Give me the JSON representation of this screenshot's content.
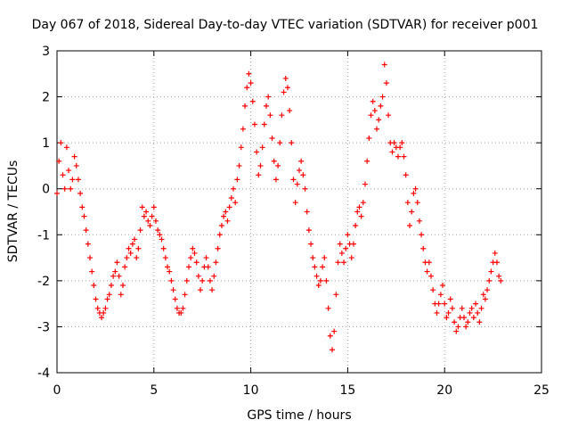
{
  "chart_data": {
    "type": "scatter",
    "title": "Day 067 of 2018, Sidereal Day-to-day VTEC variation (SDTVAR) for receiver p001",
    "xlabel": "GPS time / hours",
    "ylabel": "SDTVAR / TECUs",
    "xlim": [
      0,
      25
    ],
    "ylim": [
      -4,
      3
    ],
    "xticks": [
      0,
      5,
      10,
      15,
      20,
      25
    ],
    "yticks": [
      -4,
      -3,
      -2,
      -1,
      0,
      1,
      2,
      3
    ],
    "grid": true,
    "marker": "+",
    "series": [
      {
        "name": "SDTVAR",
        "color": "#ff0000",
        "points": [
          [
            0.0,
            -0.1
          ],
          [
            0.1,
            0.6
          ],
          [
            0.2,
            1.0
          ],
          [
            0.3,
            0.3
          ],
          [
            0.4,
            0.0
          ],
          [
            0.5,
            0.9
          ],
          [
            0.6,
            0.4
          ],
          [
            0.7,
            0.0
          ],
          [
            0.8,
            0.2
          ],
          [
            0.9,
            0.7
          ],
          [
            1.0,
            0.5
          ],
          [
            1.1,
            0.2
          ],
          [
            1.2,
            -0.1
          ],
          [
            1.3,
            -0.4
          ],
          [
            1.4,
            -0.6
          ],
          [
            1.5,
            -0.9
          ],
          [
            1.6,
            -1.2
          ],
          [
            1.7,
            -1.5
          ],
          [
            1.8,
            -1.8
          ],
          [
            1.9,
            -2.1
          ],
          [
            2.0,
            -2.4
          ],
          [
            2.1,
            -2.6
          ],
          [
            2.2,
            -2.7
          ],
          [
            2.3,
            -2.8
          ],
          [
            2.4,
            -2.7
          ],
          [
            2.5,
            -2.6
          ],
          [
            2.6,
            -2.4
          ],
          [
            2.7,
            -2.3
          ],
          [
            2.8,
            -2.1
          ],
          [
            2.9,
            -1.9
          ],
          [
            3.0,
            -1.8
          ],
          [
            3.1,
            -1.6
          ],
          [
            3.2,
            -1.9
          ],
          [
            3.3,
            -2.3
          ],
          [
            3.4,
            -2.1
          ],
          [
            3.5,
            -1.7
          ],
          [
            3.6,
            -1.5
          ],
          [
            3.7,
            -1.3
          ],
          [
            3.8,
            -1.4
          ],
          [
            3.9,
            -1.2
          ],
          [
            4.0,
            -1.1
          ],
          [
            4.1,
            -1.5
          ],
          [
            4.2,
            -1.3
          ],
          [
            4.3,
            -0.9
          ],
          [
            4.4,
            -0.4
          ],
          [
            4.5,
            -0.6
          ],
          [
            4.6,
            -0.5
          ],
          [
            4.7,
            -0.7
          ],
          [
            4.8,
            -0.8
          ],
          [
            4.9,
            -0.6
          ],
          [
            5.0,
            -0.4
          ],
          [
            5.1,
            -0.7
          ],
          [
            5.2,
            -0.9
          ],
          [
            5.3,
            -1.0
          ],
          [
            5.4,
            -1.1
          ],
          [
            5.5,
            -1.3
          ],
          [
            5.6,
            -1.5
          ],
          [
            5.7,
            -1.7
          ],
          [
            5.8,
            -1.8
          ],
          [
            5.9,
            -2.0
          ],
          [
            6.0,
            -2.2
          ],
          [
            6.1,
            -2.4
          ],
          [
            6.2,
            -2.6
          ],
          [
            6.3,
            -2.7
          ],
          [
            6.4,
            -2.7
          ],
          [
            6.5,
            -2.6
          ],
          [
            6.6,
            -2.3
          ],
          [
            6.7,
            -2.0
          ],
          [
            6.8,
            -1.7
          ],
          [
            6.9,
            -1.5
          ],
          [
            7.0,
            -1.3
          ],
          [
            7.1,
            -1.4
          ],
          [
            7.2,
            -1.6
          ],
          [
            7.3,
            -1.9
          ],
          [
            7.4,
            -2.2
          ],
          [
            7.5,
            -2.0
          ],
          [
            7.6,
            -1.7
          ],
          [
            7.7,
            -1.5
          ],
          [
            7.8,
            -1.7
          ],
          [
            7.9,
            -2.0
          ],
          [
            8.0,
            -2.2
          ],
          [
            8.1,
            -1.9
          ],
          [
            8.2,
            -1.6
          ],
          [
            8.3,
            -1.3
          ],
          [
            8.4,
            -1.0
          ],
          [
            8.5,
            -0.8
          ],
          [
            8.6,
            -0.6
          ],
          [
            8.7,
            -0.5
          ],
          [
            8.8,
            -0.7
          ],
          [
            8.9,
            -0.4
          ],
          [
            9.0,
            -0.2
          ],
          [
            9.1,
            0.0
          ],
          [
            9.2,
            -0.3
          ],
          [
            9.3,
            0.2
          ],
          [
            9.4,
            0.5
          ],
          [
            9.5,
            0.9
          ],
          [
            9.6,
            1.3
          ],
          [
            9.7,
            1.8
          ],
          [
            9.8,
            2.2
          ],
          [
            9.9,
            2.5
          ],
          [
            10.0,
            2.3
          ],
          [
            10.1,
            1.9
          ],
          [
            10.2,
            1.4
          ],
          [
            10.3,
            0.8
          ],
          [
            10.4,
            0.3
          ],
          [
            10.5,
            0.5
          ],
          [
            10.6,
            0.9
          ],
          [
            10.7,
            1.4
          ],
          [
            10.8,
            1.8
          ],
          [
            10.9,
            2.0
          ],
          [
            11.0,
            1.6
          ],
          [
            11.1,
            1.1
          ],
          [
            11.2,
            0.6
          ],
          [
            11.3,
            0.2
          ],
          [
            11.4,
            0.5
          ],
          [
            11.5,
            1.0
          ],
          [
            11.6,
            1.6
          ],
          [
            11.7,
            2.1
          ],
          [
            11.8,
            2.4
          ],
          [
            11.9,
            2.2
          ],
          [
            12.0,
            1.7
          ],
          [
            12.1,
            1.0
          ],
          [
            12.2,
            0.2
          ],
          [
            12.3,
            -0.3
          ],
          [
            12.4,
            0.1
          ],
          [
            12.5,
            0.4
          ],
          [
            12.6,
            0.6
          ],
          [
            12.7,
            0.3
          ],
          [
            12.8,
            0.0
          ],
          [
            12.9,
            -0.5
          ],
          [
            13.0,
            -0.9
          ],
          [
            13.1,
            -1.2
          ],
          [
            13.2,
            -1.5
          ],
          [
            13.3,
            -1.7
          ],
          [
            13.4,
            -1.9
          ],
          [
            13.5,
            -2.1
          ],
          [
            13.6,
            -2.0
          ],
          [
            13.7,
            -1.7
          ],
          [
            13.8,
            -1.5
          ],
          [
            13.9,
            -2.0
          ],
          [
            14.0,
            -2.6
          ],
          [
            14.1,
            -3.2
          ],
          [
            14.2,
            -3.5
          ],
          [
            14.3,
            -3.1
          ],
          [
            14.4,
            -2.3
          ],
          [
            14.5,
            -1.6
          ],
          [
            14.6,
            -1.2
          ],
          [
            14.7,
            -1.4
          ],
          [
            14.8,
            -1.6
          ],
          [
            14.9,
            -1.3
          ],
          [
            15.0,
            -1.0
          ],
          [
            15.1,
            -1.2
          ],
          [
            15.2,
            -1.5
          ],
          [
            15.3,
            -1.2
          ],
          [
            15.4,
            -0.8
          ],
          [
            15.5,
            -0.5
          ],
          [
            15.6,
            -0.4
          ],
          [
            15.7,
            -0.6
          ],
          [
            15.8,
            -0.3
          ],
          [
            15.9,
            0.1
          ],
          [
            16.0,
            0.6
          ],
          [
            16.1,
            1.1
          ],
          [
            16.2,
            1.6
          ],
          [
            16.3,
            1.9
          ],
          [
            16.4,
            1.7
          ],
          [
            16.5,
            1.3
          ],
          [
            16.6,
            1.5
          ],
          [
            16.7,
            1.8
          ],
          [
            16.8,
            2.0
          ],
          [
            16.9,
            2.7
          ],
          [
            17.0,
            2.3
          ],
          [
            17.1,
            1.6
          ],
          [
            17.2,
            1.0
          ],
          [
            17.3,
            0.8
          ],
          [
            17.4,
            1.0
          ],
          [
            17.5,
            0.9
          ],
          [
            17.6,
            0.7
          ],
          [
            17.7,
            0.9
          ],
          [
            17.8,
            1.0
          ],
          [
            17.9,
            0.7
          ],
          [
            18.0,
            0.3
          ],
          [
            18.1,
            -0.3
          ],
          [
            18.2,
            -0.8
          ],
          [
            18.3,
            -0.5
          ],
          [
            18.4,
            -0.1
          ],
          [
            18.5,
            0.0
          ],
          [
            18.6,
            -0.3
          ],
          [
            18.7,
            -0.7
          ],
          [
            18.8,
            -1.0
          ],
          [
            18.9,
            -1.3
          ],
          [
            19.0,
            -1.6
          ],
          [
            19.1,
            -1.8
          ],
          [
            19.2,
            -1.6
          ],
          [
            19.3,
            -1.9
          ],
          [
            19.4,
            -2.2
          ],
          [
            19.5,
            -2.5
          ],
          [
            19.6,
            -2.7
          ],
          [
            19.7,
            -2.5
          ],
          [
            19.8,
            -2.3
          ],
          [
            19.9,
            -2.1
          ],
          [
            20.0,
            -2.5
          ],
          [
            20.1,
            -2.8
          ],
          [
            20.2,
            -2.7
          ],
          [
            20.3,
            -2.4
          ],
          [
            20.4,
            -2.6
          ],
          [
            20.5,
            -2.9
          ],
          [
            20.6,
            -3.1
          ],
          [
            20.7,
            -3.0
          ],
          [
            20.8,
            -2.8
          ],
          [
            20.9,
            -2.6
          ],
          [
            21.0,
            -2.8
          ],
          [
            21.1,
            -3.0
          ],
          [
            21.2,
            -2.9
          ],
          [
            21.3,
            -2.7
          ],
          [
            21.4,
            -2.6
          ],
          [
            21.5,
            -2.8
          ],
          [
            21.6,
            -2.5
          ],
          [
            21.7,
            -2.7
          ],
          [
            21.8,
            -2.9
          ],
          [
            21.9,
            -2.6
          ],
          [
            22.0,
            -2.3
          ],
          [
            22.1,
            -2.4
          ],
          [
            22.2,
            -2.2
          ],
          [
            22.3,
            -2.0
          ],
          [
            22.4,
            -1.8
          ],
          [
            22.5,
            -1.6
          ],
          [
            22.6,
            -1.4
          ],
          [
            22.7,
            -1.6
          ],
          [
            22.8,
            -1.9
          ],
          [
            22.9,
            -2.0
          ]
        ]
      }
    ]
  }
}
